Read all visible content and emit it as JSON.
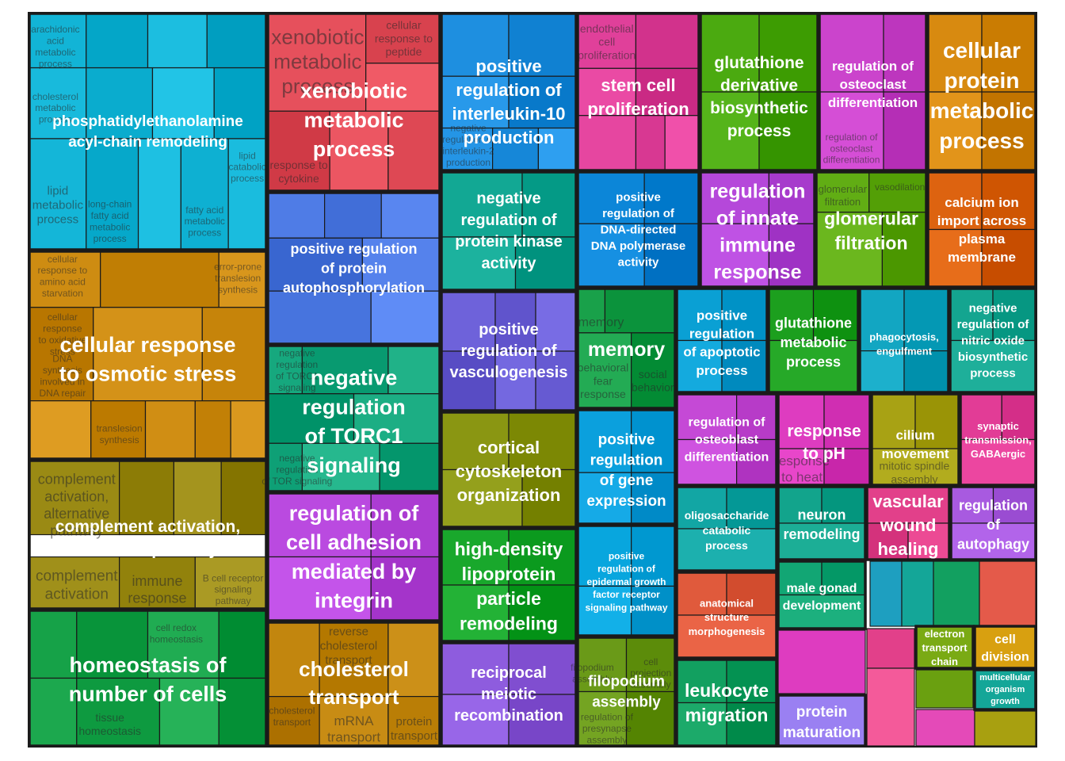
{
  "chart_data": {
    "type": "treemap",
    "title": "",
    "groups": [
      {
        "label": "phosphatidylethanolamine acyl-chain remodeling",
        "color": "#12B4D6",
        "subterms": [
          "arachidonic acid metabolic process",
          "cholesterol metabolic process",
          "lipid catabolic process",
          "lipid metabolic process",
          "long-chain fatty acid metabolic process",
          "fatty acid metabolic process"
        ]
      },
      {
        "label": "xenobiotic metabolic process",
        "color": "#E6505C",
        "subterms": [
          "xenobiotic metabolic process",
          "cellular response to peptide",
          "response to cytokine"
        ]
      },
      {
        "label": "positive regulation of interleukin-10 production",
        "color": "#1E8FE0",
        "subterms": [
          "negative regulation of interleukin-2 production"
        ]
      },
      {
        "label": "stem cell proliferation",
        "color": "#E0409A",
        "subterms": [
          "endothelial cell proliferation"
        ]
      },
      {
        "label": "glutathione derivative biosynthetic process",
        "color": "#4BAA10",
        "subterms": []
      },
      {
        "label": "regulation of osteoclast differentiation",
        "color": "#CB44CC",
        "subterms": [
          "regulation of osteoclast differentiation"
        ]
      },
      {
        "label": "cellular protein metabolic process",
        "color": "#D88A10",
        "subterms": []
      },
      {
        "label": "positive regulation of protein autophosphorylation",
        "color": "#4F7CE6",
        "subterms": []
      },
      {
        "label": "negative regulation of protein kinase activity",
        "color": "#12A894",
        "subterms": []
      },
      {
        "label": "positive regulation of DNA-directed DNA polymerase activity",
        "color": "#0C86D8",
        "subterms": []
      },
      {
        "label": "regulation of innate immune response",
        "color": "#B548DA",
        "subterms": []
      },
      {
        "label": "glomerular filtration",
        "color": "#61AD14",
        "subterms": [
          "glomerular filtration",
          "vasodilation"
        ]
      },
      {
        "label": "calcium ion import across plasma membrane",
        "color": "#DD6310",
        "subterms": []
      },
      {
        "label": "cellular response to osmotic stress",
        "color": "#CE8C12",
        "subterms": [
          "cellular response to amino acid starvation",
          "error-prone translesion synthesis",
          "cellular response to oxidative stress",
          "DNA synthesis involved in DNA repair",
          "translesion synthesis"
        ]
      },
      {
        "label": "negative regulation of TORC1 signaling",
        "color": "#16A87E",
        "subterms": [
          "negative regulation of TORC1 signaling",
          "negative regulation of TOR signaling"
        ]
      },
      {
        "label": "positive regulation of vasculogenesis",
        "color": "#6E62DA",
        "subterms": []
      },
      {
        "label": "memory",
        "color": "#19A14A",
        "subterms": [
          "memory",
          "behavioral fear response",
          "social behavior"
        ]
      },
      {
        "label": "positive regulation of apoptotic process",
        "color": "#0AA0D4",
        "subterms": []
      },
      {
        "label": "glutathione metabolic process",
        "color": "#1C9F1E",
        "subterms": []
      },
      {
        "label": "phagocytosis, engulfment",
        "color": "#12A6C2",
        "subterms": []
      },
      {
        "label": "negative regulation of nitric oxide biosynthetic process",
        "color": "#14A590",
        "subterms": []
      },
      {
        "label": "cortical cytoskeleton organization",
        "color": "#8A9612",
        "subterms": []
      },
      {
        "label": "positive regulation of gene expression",
        "color": "#0BA0DD",
        "subterms": []
      },
      {
        "label": "regulation of osteoblast differentiation",
        "color": "#C549D6",
        "subterms": []
      },
      {
        "label": "response to pH",
        "color": "#DE3CC0",
        "subterms": [
          "response to heat"
        ]
      },
      {
        "label": "cilium movement",
        "color": "#A8A214",
        "subterms": [
          "mitotic spindle assembly"
        ]
      },
      {
        "label": "synaptic transmission, GABAergic",
        "color": "#E23C96",
        "subterms": []
      },
      {
        "label": "complement activation, classical pathway",
        "color": "#9A8A14",
        "subterms": [
          "complement activation, alternative pathway",
          "complement activation",
          "immune response",
          "B cell receptor signaling pathway"
        ]
      },
      {
        "label": "regulation of cell adhesion mediated by integrin",
        "color": "#BA4AE0",
        "subterms": []
      },
      {
        "label": "high-density lipoprotein particle remodeling",
        "color": "#19A82C",
        "subterms": []
      },
      {
        "label": "positive regulation of epidermal growth factor receptor signaling pathway",
        "color": "#08A6DE",
        "subterms": []
      },
      {
        "label": "oligosaccharide catabolic process",
        "color": "#12A6A4",
        "subterms": []
      },
      {
        "label": "neuron remodeling",
        "color": "#12A48C",
        "subterms": []
      },
      {
        "label": "vascular wound healing",
        "color": "#E2408A",
        "subterms": []
      },
      {
        "label": "regulation of autophagy",
        "color": "#A85AE0",
        "subterms": []
      },
      {
        "label": "anatomical structure morphogenesis",
        "color": "#E05A3C",
        "subterms": []
      },
      {
        "label": "male gonad development",
        "color": "#12A674",
        "subterms": []
      },
      {
        "label": "electron transport chain",
        "color": "#7AAA14",
        "subterms": []
      },
      {
        "label": "cell division",
        "color": "#D8A010",
        "subterms": []
      },
      {
        "label": "multicellular organism growth",
        "color": "#14A698",
        "subterms": []
      },
      {
        "label": "homeostasis of number of cells",
        "color": "#16A248",
        "subterms": [
          "cell redox homeostasis",
          "tissue homeostasis"
        ]
      },
      {
        "label": "cholesterol transport",
        "color": "#C2860E",
        "subterms": [
          "reverse cholesterol transport",
          "cholesterol transport",
          "mRNA transport",
          "protein transport"
        ]
      },
      {
        "label": "reciprocal meiotic recombination",
        "color": "#8E5CDE",
        "subterms": []
      },
      {
        "label": "filopodium assembly",
        "color": "#6A9A18",
        "subterms": [
          "filopodium assembly",
          "cell projection assembly",
          "regulation of presynapse assembly"
        ]
      },
      {
        "label": "leukocyte migration",
        "color": "#12A060",
        "subterms": []
      },
      {
        "label": "protein maturation",
        "color": "#9A80F2",
        "subterms": []
      }
    ]
  }
}
